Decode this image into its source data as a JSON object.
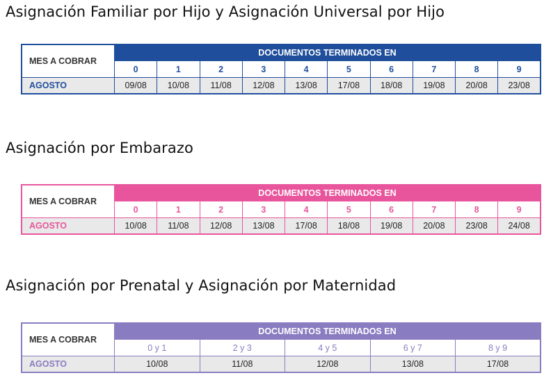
{
  "sections": [
    {
      "title": "Asignación Familiar por Hijo y Asignación Universal por Hijo",
      "mes_label": "MES A COBRAR",
      "header": "DOCUMENTOS TERMINADOS EN",
      "digits": [
        "0",
        "1",
        "2",
        "3",
        "4",
        "5",
        "6",
        "7",
        "8",
        "9"
      ],
      "month": "AGOSTO",
      "dates": [
        "09/08",
        "10/08",
        "11/08",
        "12/08",
        "13/08",
        "17/08",
        "18/08",
        "19/08",
        "20/08",
        "23/08"
      ],
      "color": "#1f4e9c"
    },
    {
      "title": "Asignación por Embarazo",
      "mes_label": "MES A COBRAR",
      "header": "DOCUMENTOS TERMINADOS EN",
      "digits": [
        "0",
        "1",
        "2",
        "3",
        "4",
        "5",
        "6",
        "7",
        "8",
        "9"
      ],
      "month": "AGOSTO",
      "dates": [
        "10/08",
        "11/08",
        "12/08",
        "13/08",
        "17/08",
        "18/08",
        "19/08",
        "20/08",
        "23/08",
        "24/08"
      ],
      "color": "#e8559c"
    },
    {
      "title": "Asignación por Prenatal y Asignación por Maternidad",
      "mes_label": "MES A COBRAR",
      "header": "DOCUMENTOS TERMINADOS EN",
      "digits": [
        "0 y 1",
        "2 y 3",
        "4 y 5",
        "6 y 7",
        "8 y 9"
      ],
      "month": "AGOSTO",
      "dates": [
        "10/08",
        "11/08",
        "12/08",
        "13/08",
        "17/08"
      ],
      "color": "#8a7cc0"
    }
  ]
}
